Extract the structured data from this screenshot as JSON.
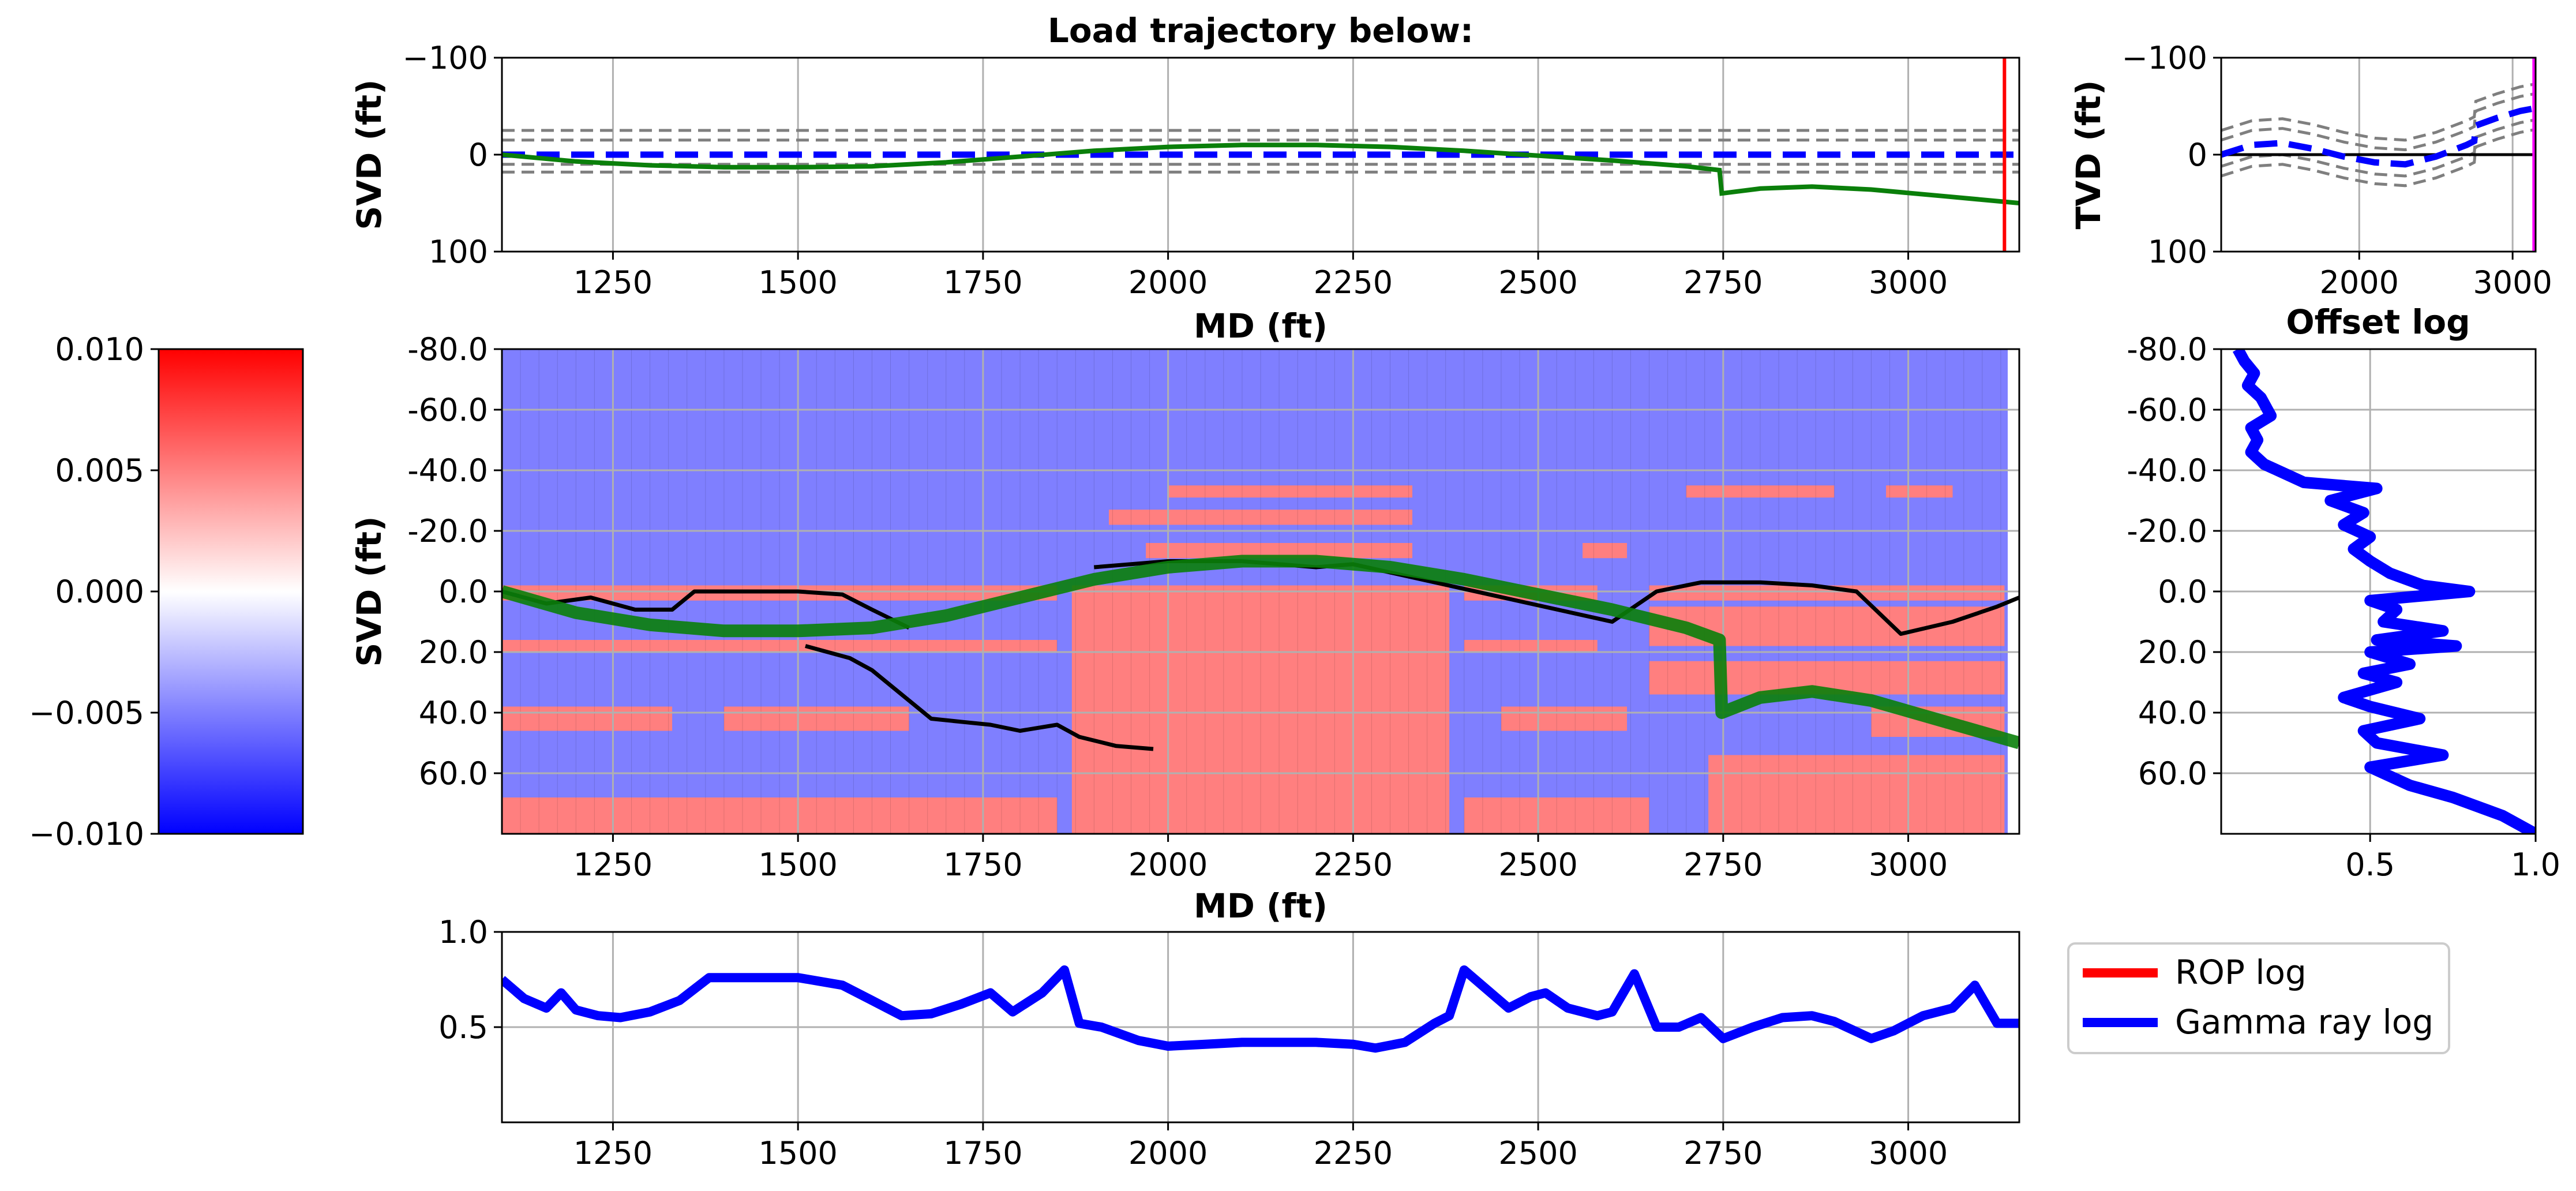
{
  "colors": {
    "green_trajectory": "#0a7f0a",
    "blue_log": "#0000ff",
    "red_rop": "#ff0000",
    "guide_gray": "#7f7f7f",
    "heat_high": "#ff7f7f",
    "heat_low": "#7f7fff"
  },
  "chart_data": [
    {
      "id": "top_trajectory",
      "type": "line",
      "title": "Load trajectory below:",
      "xlabel": "MD (ft)",
      "ylabel": "SVD (ft)",
      "xlim": [
        1100,
        3150
      ],
      "ylim": [
        100,
        -100
      ],
      "inverted_y": true,
      "grid": true,
      "x_ticks": [
        "1250",
        "1500",
        "1750",
        "2000",
        "2250",
        "2500",
        "2750",
        "3000"
      ],
      "y_ticks": [
        "−100",
        "0",
        "100"
      ],
      "series": [
        {
          "style": "solid green",
          "x": [
            1100,
            1200,
            1300,
            1400,
            1500,
            1600,
            1700,
            1800,
            1900,
            2000,
            2100,
            2200,
            2300,
            2400,
            2500,
            2600,
            2700,
            2745,
            2748,
            2800,
            2870,
            2950,
            3050,
            3150
          ],
          "y": [
            0,
            7,
            11,
            13,
            13,
            12,
            8,
            2,
            -4,
            -8,
            -10,
            -10,
            -8,
            -4,
            1,
            6,
            12,
            16,
            40,
            35,
            33,
            36,
            43,
            50
          ]
        },
        {
          "style": "dashed blue",
          "x": [
            1100,
            3150
          ],
          "y": [
            0,
            0
          ]
        }
      ],
      "guide_lines_y": [
        -25,
        -15,
        10,
        18
      ],
      "marker_line_x": 3130
    },
    {
      "id": "top_right_tvd",
      "type": "line",
      "xlabel": "",
      "ylabel": "TVD (ft)",
      "xlim": [
        1100,
        3150
      ],
      "ylim": [
        100,
        -100
      ],
      "inverted_y": true,
      "grid": true,
      "x_ticks": [
        "2000",
        "3000"
      ],
      "y_ticks": [
        "−100",
        "0",
        "100"
      ],
      "series": [
        {
          "style": "dashed blue",
          "x": [
            1100,
            1300,
            1500,
            1700,
            1900,
            2100,
            2300,
            2500,
            2700,
            2750,
            2760,
            2900,
            3050,
            3150
          ],
          "y": [
            0,
            -10,
            -12,
            -6,
            2,
            8,
            10,
            2,
            -10,
            -14,
            -30,
            -38,
            -45,
            -48
          ]
        }
      ],
      "black_line_y": 0,
      "marker_line_x": 3140
    },
    {
      "id": "colorbar",
      "type": "heatmap",
      "colormap": "bwr",
      "ticks": [
        "0.010",
        "0.005",
        "0.000",
        "−0.005",
        "−0.010"
      ],
      "range": [
        -0.01,
        0.01
      ]
    },
    {
      "id": "main_heatmap",
      "type": "heatmap",
      "xlabel": "MD (ft)",
      "ylabel": "SVD (ft)",
      "xlim": [
        1100,
        3150
      ],
      "ylim": [
        80,
        -80
      ],
      "grid": true,
      "x_ticks": [
        "1250",
        "1500",
        "1750",
        "2000",
        "2250",
        "2500",
        "2750",
        "3000"
      ],
      "y_ticks": [
        "-80.0",
        "-60.0",
        "-40.0",
        "-20.0",
        "0.0",
        "20.0",
        "40.0",
        "60.0"
      ],
      "trajectory": {
        "x": [
          1100,
          1200,
          1300,
          1400,
          1500,
          1600,
          1700,
          1800,
          1900,
          2000,
          2100,
          2200,
          2300,
          2400,
          2500,
          2600,
          2700,
          2745,
          2748,
          2800,
          2870,
          2950,
          3050,
          3150
        ],
        "y": [
          0,
          7,
          11,
          13,
          13,
          12,
          8,
          2,
          -4,
          -8,
          -10,
          -10,
          -8,
          -4,
          1,
          6,
          12,
          16,
          40,
          35,
          33,
          36,
          43,
          50
        ]
      }
    },
    {
      "id": "offset_log",
      "type": "line",
      "title": "Offset log",
      "xlim": [
        0.05,
        1.0
      ],
      "ylim": [
        80,
        -80
      ],
      "grid": true,
      "x_ticks": [
        "0.5",
        "1.0"
      ],
      "y_ticks": [
        "-80.0",
        "-60.0",
        "-40.0",
        "-20.0",
        "0.0",
        "20.0",
        "40.0",
        "60.0"
      ],
      "series": [
        {
          "style": "solid blue",
          "x": [
            0.1,
            0.12,
            0.15,
            0.13,
            0.17,
            0.2,
            0.14,
            0.16,
            0.14,
            0.18,
            0.3,
            0.52,
            0.38,
            0.48,
            0.42,
            0.5,
            0.45,
            0.5,
            0.56,
            0.66,
            0.8,
            0.5,
            0.58,
            0.54,
            0.72,
            0.52,
            0.76,
            0.5,
            0.62,
            0.48,
            0.58,
            0.42,
            0.5,
            0.65,
            0.48,
            0.52,
            0.72,
            0.5,
            0.62,
            0.75,
            0.9,
            1.0
          ],
          "y": [
            -80,
            -76,
            -72,
            -68,
            -64,
            -58,
            -54,
            -50,
            -46,
            -42,
            -36,
            -34,
            -30,
            -26,
            -22,
            -18,
            -14,
            -10,
            -6,
            -2,
            0,
            3,
            6,
            10,
            13,
            16,
            18,
            20,
            24,
            27,
            30,
            35,
            38,
            42,
            46,
            50,
            54,
            58,
            64,
            68,
            74,
            80
          ]
        }
      ]
    },
    {
      "id": "gamma_ray",
      "type": "line",
      "xlabel": "",
      "ylabel": "",
      "xlim": [
        1100,
        3150
      ],
      "ylim": [
        0,
        1.0
      ],
      "grid": true,
      "x_ticks": [
        "1250",
        "1500",
        "1750",
        "2000",
        "2250",
        "2500",
        "2750",
        "3000"
      ],
      "y_ticks": [
        "0.5",
        "1.0"
      ],
      "series": [
        {
          "name": "Gamma ray log",
          "style": "solid blue",
          "x": [
            1100,
            1130,
            1160,
            1180,
            1200,
            1230,
            1260,
            1300,
            1340,
            1380,
            1420,
            1500,
            1560,
            1600,
            1640,
            1680,
            1720,
            1760,
            1790,
            1830,
            1860,
            1880,
            1910,
            1960,
            2000,
            2050,
            2100,
            2150,
            2200,
            2250,
            2280,
            2320,
            2360,
            2380,
            2400,
            2430,
            2460,
            2490,
            2510,
            2540,
            2580,
            2600,
            2630,
            2660,
            2690,
            2720,
            2750,
            2790,
            2830,
            2870,
            2900,
            2950,
            2980,
            3020,
            3060,
            3090,
            3120,
            3150
          ],
          "y": [
            0.75,
            0.65,
            0.6,
            0.68,
            0.59,
            0.56,
            0.55,
            0.58,
            0.64,
            0.76,
            0.76,
            0.76,
            0.72,
            0.64,
            0.56,
            0.57,
            0.62,
            0.68,
            0.58,
            0.68,
            0.8,
            0.52,
            0.5,
            0.43,
            0.4,
            0.41,
            0.42,
            0.42,
            0.42,
            0.41,
            0.39,
            0.42,
            0.52,
            0.56,
            0.8,
            0.7,
            0.6,
            0.66,
            0.68,
            0.6,
            0.56,
            0.58,
            0.78,
            0.5,
            0.5,
            0.55,
            0.44,
            0.5,
            0.55,
            0.56,
            0.53,
            0.44,
            0.48,
            0.56,
            0.6,
            0.72,
            0.52,
            0.52
          ]
        }
      ]
    }
  ],
  "legend": {
    "items": [
      {
        "label": "ROP log",
        "color": "#ff0000"
      },
      {
        "label": "Gamma ray log",
        "color": "#0000ff"
      }
    ]
  }
}
